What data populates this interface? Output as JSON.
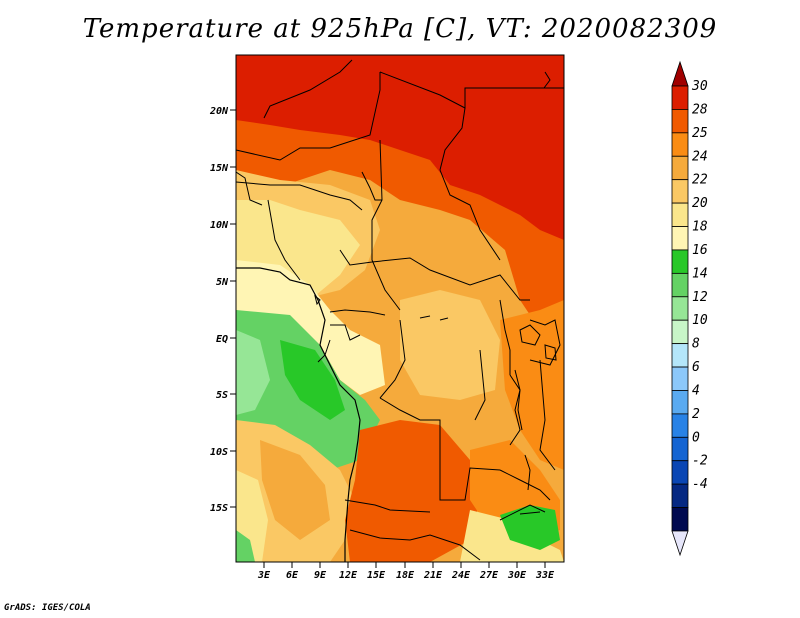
{
  "title": "Temperature at 925hPa [C], VT: 2020082309",
  "credit": "GrADS: IGES/COLA",
  "lat_ticks": [
    "20N",
    "15N",
    "10N",
    "5N",
    "EQ",
    "5S",
    "10S",
    "15S"
  ],
  "lon_ticks": [
    "3E",
    "6E",
    "9E",
    "12E",
    "15E",
    "18E",
    "21E",
    "24E",
    "27E",
    "30E",
    "33E"
  ],
  "colorbar": {
    "labels": [
      "30",
      "28",
      "25",
      "24",
      "22",
      "20",
      "18",
      "16",
      "14",
      "12",
      "10",
      "8",
      "6",
      "4",
      "2",
      "0",
      "-2",
      "-4"
    ],
    "colors": [
      "#a00000",
      "#dc1e00",
      "#f05a00",
      "#fa8c14",
      "#f5aa3c",
      "#fac864",
      "#fae68c",
      "#fff5b4",
      "#28c828",
      "#64d264",
      "#96e696",
      "#c8f5c8",
      "#b4e6fa",
      "#8cc8fa",
      "#5aaaf0",
      "#2882e6",
      "#1464d2",
      "#0a46b4",
      "#052882",
      "#000a50",
      "#e6e6fa"
    ]
  },
  "map_colors": {
    "t30": "#dc1e00",
    "t28": "#f05a00",
    "t25": "#fa8c14",
    "t24": "#f5aa3c",
    "t22": "#fac864",
    "t20": "#fae68c",
    "t18": "#fff5b4",
    "t16": "#28c828",
    "t14": "#64d264",
    "t12": "#96e696"
  }
}
